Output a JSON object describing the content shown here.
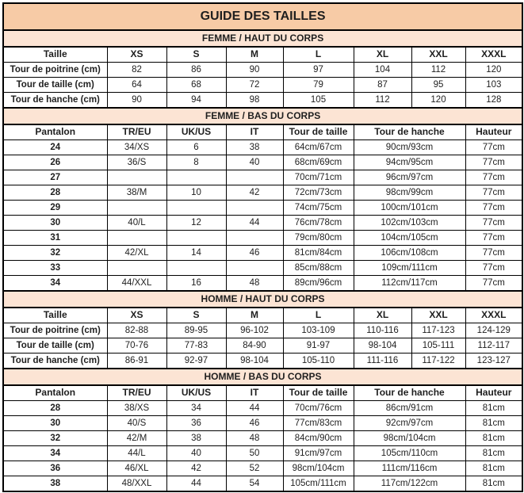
{
  "title": "GUIDE DES TAILLES",
  "colors": {
    "title_bg": "#f7cba6",
    "band_bg": "#fce4d4",
    "border": "#000000",
    "text": "#1f1f1f"
  },
  "sections": [
    {
      "band": "FEMME / HAUT DU CORPS",
      "type": "haut",
      "header": [
        "Taille",
        "XS",
        "S",
        "M",
        "L",
        "XL",
        "XXL",
        "XXXL"
      ],
      "rows": [
        [
          "Tour de poitrine (cm)",
          "82",
          "86",
          "90",
          "97",
          "104",
          "112",
          "120"
        ],
        [
          "Tour de taille (cm)",
          "64",
          "68",
          "72",
          "79",
          "87",
          "95",
          "103"
        ],
        [
          "Tour de hanche (cm)",
          "90",
          "94",
          "98",
          "105",
          "112",
          "120",
          "128"
        ]
      ]
    },
    {
      "band": "FEMME / BAS DU CORPS",
      "type": "bas",
      "header": [
        "Pantalon",
        "TR/EU",
        "UK/US",
        "IT",
        "Tour de taille",
        "Tour de hanche",
        "Hauteur"
      ],
      "rows": [
        [
          "24",
          "34/XS",
          "6",
          "38",
          "64cm/67cm",
          "90cm/93cm",
          "77cm"
        ],
        [
          "26",
          "36/S",
          "8",
          "40",
          "68cm/69cm",
          "94cm/95cm",
          "77cm"
        ],
        [
          "27",
          "",
          "",
          "",
          "70cm/71cm",
          "96cm/97cm",
          "77cm"
        ],
        [
          "28",
          "38/M",
          "10",
          "42",
          "72cm/73cm",
          "98cm/99cm",
          "77cm"
        ],
        [
          "29",
          "",
          "",
          "",
          "74cm/75cm",
          "100cm/101cm",
          "77cm"
        ],
        [
          "30",
          "40/L",
          "12",
          "44",
          "76cm/78cm",
          "102cm/103cm",
          "77cm"
        ],
        [
          "31",
          "",
          "",
          "",
          "79cm/80cm",
          "104cm/105cm",
          "77cm"
        ],
        [
          "32",
          "42/XL",
          "14",
          "46",
          "81cm/84cm",
          "106cm/108cm",
          "77cm"
        ],
        [
          "33",
          "",
          "",
          "",
          "85cm/88cm",
          "109cm/111cm",
          "77cm"
        ],
        [
          "34",
          "44/XXL",
          "16",
          "48",
          "89cm/96cm",
          "112cm/117cm",
          "77cm"
        ]
      ]
    },
    {
      "band": "HOMME / HAUT DU CORPS",
      "type": "haut",
      "header": [
        "Taille",
        "XS",
        "S",
        "M",
        "L",
        "XL",
        "XXL",
        "XXXL"
      ],
      "rows": [
        [
          "Tour de poitrine (cm)",
          "82-88",
          "89-95",
          "96-102",
          "103-109",
          "110-116",
          "117-123",
          "124-129"
        ],
        [
          "Tour de taille (cm)",
          "70-76",
          "77-83",
          "84-90",
          "91-97",
          "98-104",
          "105-111",
          "112-117"
        ],
        [
          "Tour de hanche (cm)",
          "86-91",
          "92-97",
          "98-104",
          "105-110",
          "111-116",
          "117-122",
          "123-127"
        ]
      ]
    },
    {
      "band": "HOMME / BAS DU CORPS",
      "type": "bas",
      "header": [
        "Pantalon",
        "TR/EU",
        "UK/US",
        "IT",
        "Tour de taille",
        "Tour de hanche",
        "Hauteur"
      ],
      "rows": [
        [
          "28",
          "38/XS",
          "34",
          "44",
          "70cm/76cm",
          "86cm/91cm",
          "81cm"
        ],
        [
          "30",
          "40/S",
          "36",
          "46",
          "77cm/83cm",
          "92cm/97cm",
          "81cm"
        ],
        [
          "32",
          "42/M",
          "38",
          "48",
          "84cm/90cm",
          "98cm/104cm",
          "81cm"
        ],
        [
          "34",
          "44/L",
          "40",
          "50",
          "91cm/97cm",
          "105cm/110cm",
          "81cm"
        ],
        [
          "36",
          "46/XL",
          "42",
          "52",
          "98cm/104cm",
          "111cm/116cm",
          "81cm"
        ],
        [
          "38",
          "48/XXL",
          "44",
          "54",
          "105cm/111cm",
          "117cm/122cm",
          "81cm"
        ]
      ]
    }
  ]
}
